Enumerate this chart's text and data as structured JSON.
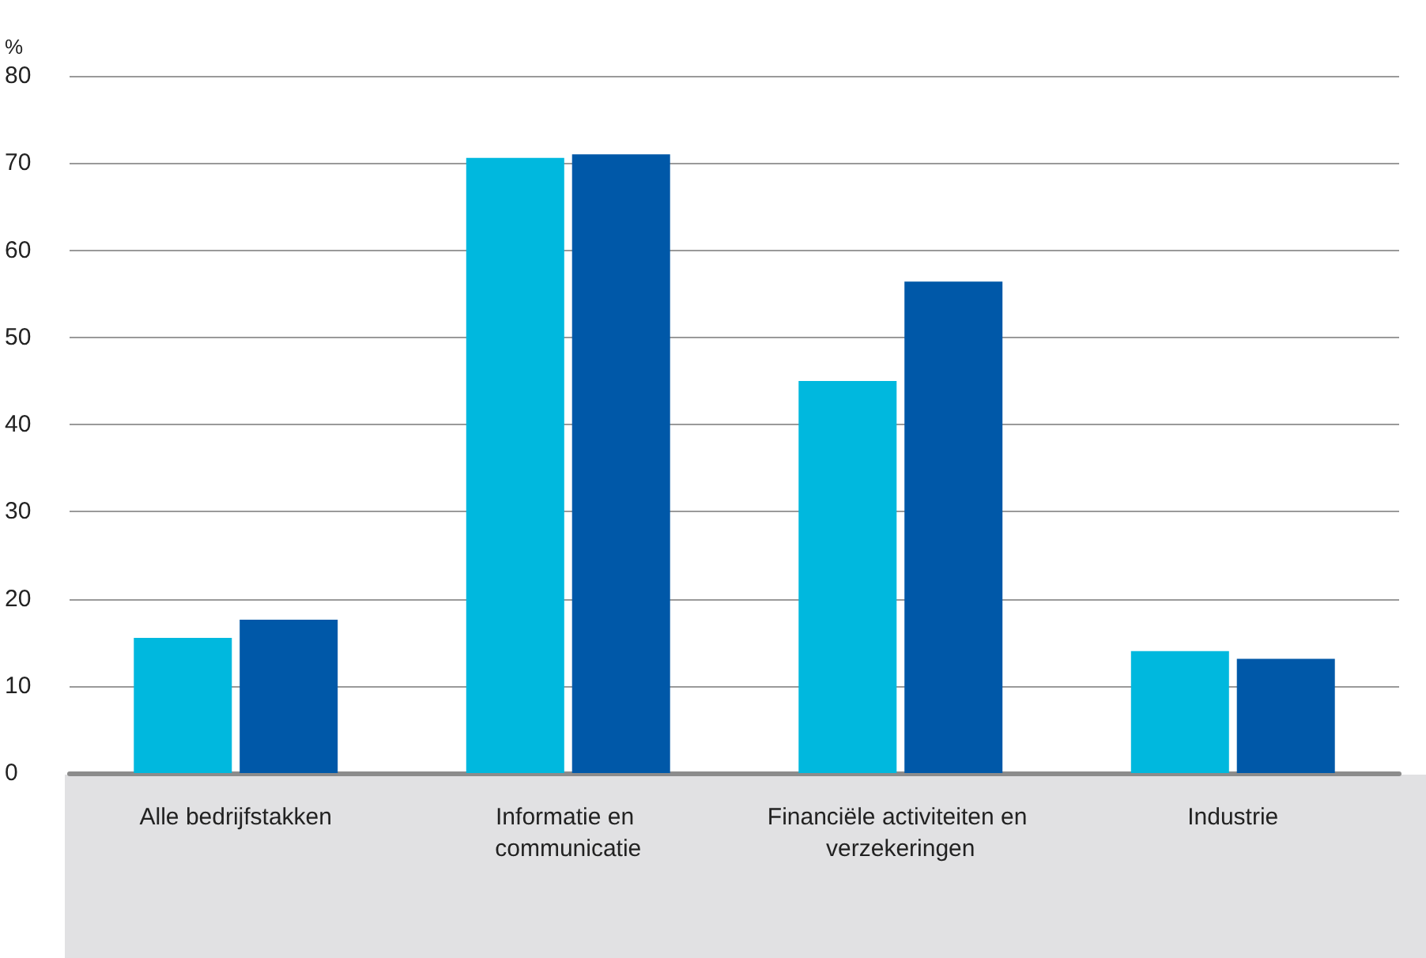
{
  "chart_data": {
    "type": "bar",
    "ylabel": "%",
    "categories": [
      "Alle bedrijfstakken",
      "Informatie en communicatie",
      "Financiële activiteiten en verzekeringen",
      "Industrie"
    ],
    "series": [
      {
        "color": "#00b8de",
        "values": [
          15.5,
          70.6,
          45.0,
          14.0
        ]
      },
      {
        "color": "#0058a8",
        "values": [
          17.6,
          71.0,
          56.4,
          13.1
        ]
      }
    ],
    "ylim": [
      0,
      80
    ],
    "yticks": [
      0,
      10,
      20,
      30,
      40,
      50,
      60,
      70,
      80
    ],
    "grid": "y"
  }
}
